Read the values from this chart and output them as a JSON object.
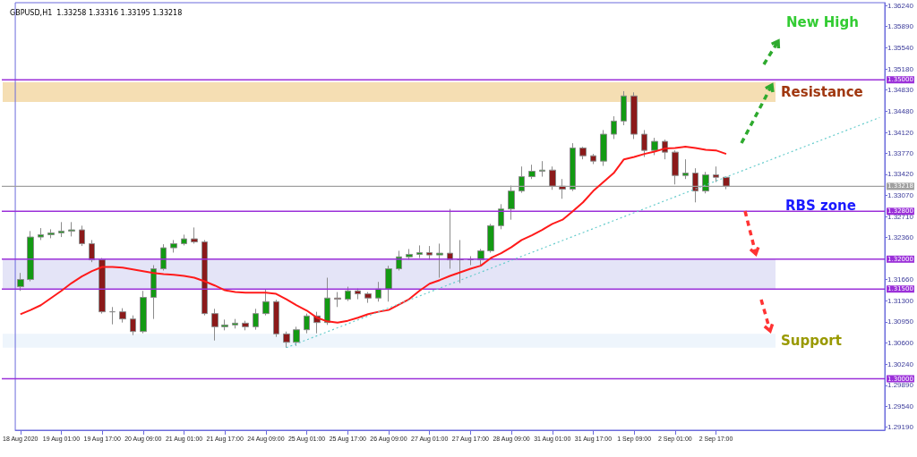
{
  "chart_data": {
    "type": "candlestick",
    "title": "GBPUSD,H1  1.33258 1.33316 1.33195 1.33218",
    "categories": [
      "18 Aug 2020",
      null,
      null,
      null,
      "19 Aug 01:00",
      null,
      null,
      null,
      "19 Aug 17:00",
      null,
      null,
      null,
      "20 Aug 09:00",
      null,
      null,
      null,
      "21 Aug 01:00",
      null,
      null,
      null,
      "21 Aug 17:00",
      null,
      null,
      null,
      "24 Aug 09:00",
      null,
      null,
      null,
      "25 Aug 01:00",
      null,
      null,
      null,
      "25 Aug 17:00",
      null,
      null,
      null,
      "26 Aug 09:00",
      null,
      null,
      null,
      "27 Aug 01:00",
      null,
      null,
      null,
      "27 Aug 17:00",
      null,
      null,
      null,
      "28 Aug 09:00",
      null,
      null,
      null,
      "31 Aug 01:00",
      null,
      null,
      null,
      "31 Aug 17:00",
      null,
      null,
      null,
      "1 Sep 09:00",
      null,
      null,
      null,
      "2 Sep 01:00",
      null,
      null,
      null,
      "2 Sep 17:00",
      null,
      null,
      null,
      null,
      null,
      null,
      null,
      null,
      null,
      null,
      null,
      null,
      null,
      null,
      null,
      null
    ],
    "ohlc": [
      [
        1.3154,
        1.3177,
        1.3147,
        1.3166
      ],
      [
        1.3166,
        1.3247,
        1.3163,
        1.3237
      ],
      [
        1.3237,
        1.3252,
        1.3232,
        1.3241
      ],
      [
        1.3241,
        1.325,
        1.3235,
        1.3244
      ],
      [
        1.3244,
        1.3262,
        1.3237,
        1.3247
      ],
      [
        1.3247,
        1.3262,
        1.3238,
        1.3249
      ],
      [
        1.3249,
        1.3256,
        1.3222,
        1.3226
      ],
      [
        1.3226,
        1.3232,
        1.3195,
        1.3199
      ],
      [
        1.3199,
        1.3202,
        1.3109,
        1.3112
      ],
      [
        1.3112,
        1.312,
        1.3091,
        1.3112
      ],
      [
        1.3112,
        1.3118,
        1.3094,
        1.31
      ],
      [
        1.31,
        1.3106,
        1.3073,
        1.3079
      ],
      [
        1.3079,
        1.3147,
        1.3076,
        1.3136
      ],
      [
        1.3136,
        1.319,
        1.31,
        1.3184
      ],
      [
        1.3184,
        1.3225,
        1.3181,
        1.3219
      ],
      [
        1.3219,
        1.3232,
        1.3211,
        1.3226
      ],
      [
        1.3226,
        1.3241,
        1.3223,
        1.3234
      ],
      [
        1.3234,
        1.3253,
        1.3226,
        1.3229
      ],
      [
        1.3229,
        1.3232,
        1.3106,
        1.3109
      ],
      [
        1.3109,
        1.3117,
        1.3064,
        1.3087
      ],
      [
        1.3087,
        1.3099,
        1.3081,
        1.309
      ],
      [
        1.309,
        1.31,
        1.3084,
        1.3093
      ],
      [
        1.3093,
        1.3097,
        1.3081,
        1.3087
      ],
      [
        1.3087,
        1.3117,
        1.3082,
        1.3109
      ],
      [
        1.3109,
        1.315,
        1.3106,
        1.3129
      ],
      [
        1.3129,
        1.3132,
        1.307,
        1.3075
      ],
      [
        1.3075,
        1.3079,
        1.3052,
        1.3061
      ],
      [
        1.3061,
        1.3087,
        1.3055,
        1.3082
      ],
      [
        1.3082,
        1.3109,
        1.3076,
        1.3105
      ],
      [
        1.3105,
        1.3112,
        1.3076,
        1.3094
      ],
      [
        1.3094,
        1.3169,
        1.309,
        1.3135
      ],
      [
        1.3135,
        1.3145,
        1.312,
        1.3133
      ],
      [
        1.3133,
        1.3154,
        1.313,
        1.3147
      ],
      [
        1.3147,
        1.3151,
        1.3133,
        1.3142
      ],
      [
        1.3142,
        1.3145,
        1.3127,
        1.3135
      ],
      [
        1.3135,
        1.3162,
        1.3129,
        1.315
      ],
      [
        1.315,
        1.3189,
        1.3129,
        1.3184
      ],
      [
        1.3184,
        1.3214,
        1.3181,
        1.3204
      ],
      [
        1.3204,
        1.3217,
        1.3199,
        1.3208
      ],
      [
        1.3208,
        1.3223,
        1.3202,
        1.3211
      ],
      [
        1.3211,
        1.3222,
        1.3199,
        1.3207
      ],
      [
        1.3207,
        1.3226,
        1.3169,
        1.321
      ],
      [
        1.321,
        1.3284,
        1.3184,
        1.3199
      ],
      [
        1.3199,
        1.3232,
        1.316,
        1.3199
      ],
      [
        1.3199,
        1.3205,
        1.319,
        1.3199
      ],
      [
        1.3199,
        1.3217,
        1.319,
        1.3214
      ],
      [
        1.3214,
        1.3259,
        1.3211,
        1.3256
      ],
      [
        1.3256,
        1.3292,
        1.325,
        1.3284
      ],
      [
        1.3284,
        1.3323,
        1.3266,
        1.3314
      ],
      [
        1.3314,
        1.3355,
        1.3311,
        1.3338
      ],
      [
        1.3338,
        1.3358,
        1.3334,
        1.3347
      ],
      [
        1.3347,
        1.3364,
        1.3338,
        1.3349
      ],
      [
        1.3349,
        1.3355,
        1.3316,
        1.3322
      ],
      [
        1.3322,
        1.3334,
        1.3301,
        1.3317
      ],
      [
        1.3317,
        1.3394,
        1.3314,
        1.3386
      ],
      [
        1.3386,
        1.3388,
        1.3367,
        1.3373
      ],
      [
        1.3373,
        1.3376,
        1.3359,
        1.3364
      ],
      [
        1.3364,
        1.3416,
        1.3356,
        1.3409
      ],
      [
        1.3409,
        1.3439,
        1.3401,
        1.3431
      ],
      [
        1.3431,
        1.3481,
        1.3424,
        1.3473
      ],
      [
        1.3473,
        1.3479,
        1.3401,
        1.3409
      ],
      [
        1.3409,
        1.3416,
        1.3371,
        1.3382
      ],
      [
        1.3382,
        1.3403,
        1.3374,
        1.3397
      ],
      [
        1.3397,
        1.34,
        1.3367,
        1.3379
      ],
      [
        1.3379,
        1.3382,
        1.3325,
        1.334
      ],
      [
        1.334,
        1.3367,
        1.3334,
        1.3344
      ],
      [
        1.3344,
        1.3352,
        1.3295,
        1.3314
      ],
      [
        1.3314,
        1.3346,
        1.331,
        1.3341
      ],
      [
        1.3341,
        1.3355,
        1.3329,
        1.3337
      ],
      [
        1.3337,
        1.3338,
        1.3317,
        1.3322
      ],
      null,
      null,
      null,
      null,
      null,
      null,
      null,
      null,
      null,
      null,
      null,
      null,
      null,
      null,
      null
    ],
    "series": [
      {
        "type": "line",
        "color": "#ff1a1a",
        "marker": "none",
        "line_style": "solid",
        "values": [
          1.3108,
          1.3115,
          1.3123,
          1.3135,
          1.3147,
          1.316,
          1.3171,
          1.318,
          1.3187,
          1.3187,
          1.3186,
          1.3183,
          1.318,
          1.3177,
          1.3175,
          1.3174,
          1.3172,
          1.3169,
          1.3163,
          1.3156,
          1.3148,
          1.3145,
          1.3144,
          1.3144,
          1.3144,
          1.3142,
          1.3133,
          1.3123,
          1.3114,
          1.3102,
          1.3096,
          1.3094,
          1.3097,
          1.3102,
          1.3108,
          1.3112,
          1.3115,
          1.3124,
          1.3133,
          1.3147,
          1.3159,
          1.3165,
          1.3172,
          1.3178,
          1.3184,
          1.3189,
          1.3202,
          1.321,
          1.322,
          1.3232,
          1.324,
          1.3249,
          1.3259,
          1.3266,
          1.328,
          1.3295,
          1.3314,
          1.3329,
          1.3344,
          1.3367,
          1.3371,
          1.3376,
          1.338,
          1.3385,
          1.3386,
          1.3388,
          1.3386,
          1.3383,
          1.3382,
          1.3376,
          null,
          null,
          null,
          null,
          null,
          null,
          null,
          null,
          null,
          null,
          null,
          null,
          null,
          null,
          null
        ]
      },
      {
        "type": "line",
        "color": "#66cccc",
        "marker": "none",
        "line_style": "dotted",
        "values": [
          null,
          null,
          null,
          null,
          null,
          null,
          null,
          null,
          null,
          null,
          null,
          null,
          null,
          null,
          null,
          null,
          null,
          null,
          null,
          null,
          null,
          null,
          null,
          null,
          null,
          null,
          1.3052,
          null,
          null,
          null,
          null,
          null,
          null,
          null,
          null,
          null,
          null,
          null,
          null,
          null,
          null,
          null,
          null,
          null,
          null,
          null,
          null,
          null,
          null,
          null,
          null,
          null,
          null,
          null,
          null,
          null,
          null,
          null,
          null,
          null,
          null,
          null,
          null,
          null,
          null,
          null,
          null,
          null,
          null,
          null,
          null,
          null,
          null,
          null,
          null,
          null,
          null,
          null,
          null,
          null,
          null,
          null,
          null,
          null,
          1.3437
        ]
      }
    ],
    "ylim": [
      1.2914,
      1.3629
    ],
    "yticks": [
      {
        "value": 1.3624,
        "label": "1.36240"
      },
      {
        "value": 1.3589,
        "label": "1.35890"
      },
      {
        "value": 1.3554,
        "label": "1.35540"
      },
      {
        "value": 1.3518,
        "label": "1.35180"
      },
      {
        "value": 1.3483,
        "label": "1.34830"
      },
      {
        "value": 1.3448,
        "label": "1.34480"
      },
      {
        "value": 1.3412,
        "label": "1.34120"
      },
      {
        "value": 1.3377,
        "label": "1.33770"
      },
      {
        "value": 1.3342,
        "label": "1.33420"
      },
      {
        "value": 1.3307,
        "label": "1.33070"
      },
      {
        "value": 1.3271,
        "label": "1.32710"
      },
      {
        "value": 1.3236,
        "label": "1.32360"
      },
      {
        "value": 1.3166,
        "label": "1.31660"
      },
      {
        "value": 1.313,
        "label": "1.31300"
      },
      {
        "value": 1.3095,
        "label": "1.30950"
      },
      {
        "value": 1.306,
        "label": "1.30600"
      },
      {
        "value": 1.3024,
        "label": "1.30240"
      },
      {
        "value": 1.2989,
        "label": "1.29890"
      },
      {
        "value": 1.2954,
        "label": "1.29540"
      },
      {
        "value": 1.2919,
        "label": "1.29190"
      }
    ],
    "ref_lines": [
      {
        "axis": "y",
        "value": 1.35,
        "label": "1.35000",
        "color": "#9b30d9"
      },
      {
        "axis": "y",
        "value": 1.33218,
        "label": "1.33218",
        "color": "#a0a0a0"
      },
      {
        "axis": "y",
        "value": 1.328,
        "label": "1.32800",
        "color": "#9b30d9"
      },
      {
        "axis": "y",
        "value": 1.32,
        "label": "1.32000",
        "color": "#9b30d9"
      },
      {
        "axis": "y",
        "value": 1.315,
        "label": "1.31500",
        "color": "#9b30d9"
      },
      {
        "axis": "y",
        "value": 1.3,
        "label": "1.30000",
        "color": "#9b30d9"
      }
    ],
    "bands": [
      {
        "axis": "y",
        "from": 1.3463,
        "to": 1.3496,
        "label": "Resistance",
        "color": "#f5deb3"
      },
      {
        "axis": "y",
        "from": 1.315,
        "to": 1.32,
        "label": null,
        "color": "#e4e4f7"
      },
      {
        "axis": "y",
        "from": 1.3052,
        "to": 1.3075,
        "label": "Support",
        "color": "#eef5fc"
      }
    ],
    "annotations": [
      "New High",
      "RBS zone"
    ],
    "grid": false
  }
}
